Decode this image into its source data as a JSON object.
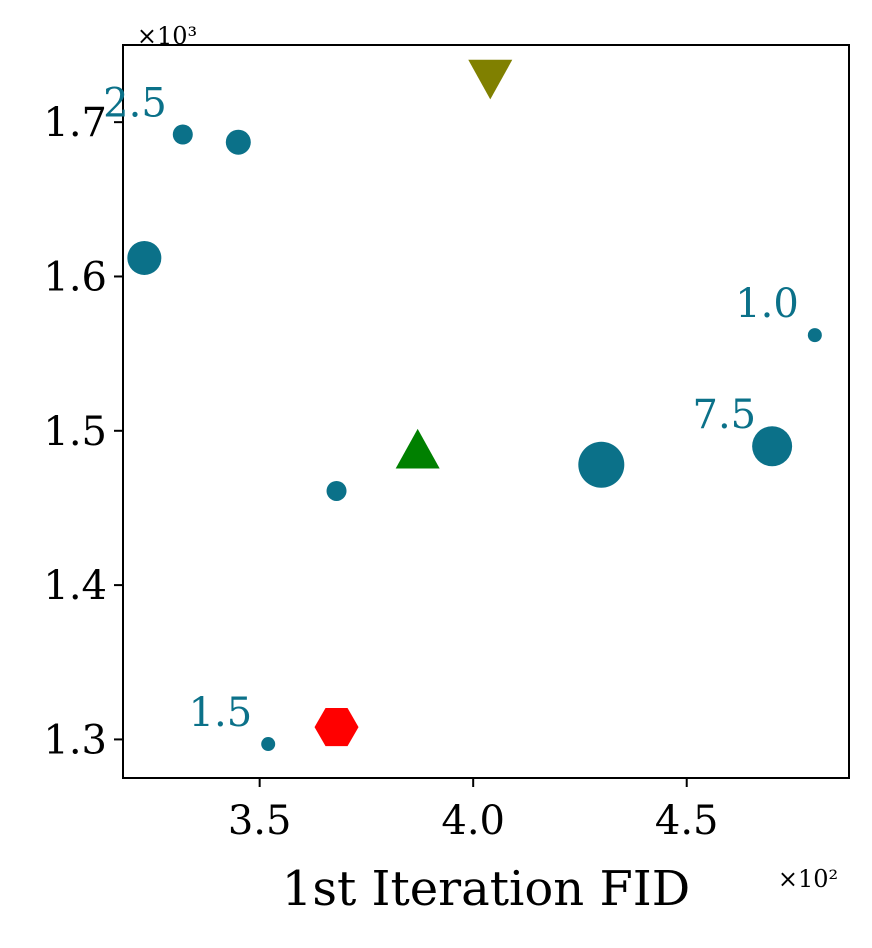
{
  "chart_data": {
    "type": "scatter",
    "xlabel": "1st Iteration FID",
    "ylabel": "",
    "x_multiplier": "×10²",
    "y_multiplier": "×10³",
    "x_scale": 100,
    "y_scale": 1000,
    "xlim": [
      3.18,
      4.88
    ],
    "ylim": [
      1.275,
      1.75
    ],
    "x_ticks": [
      3.5,
      4.0,
      4.5
    ],
    "x_tick_labels": [
      "3.5",
      "4.0",
      "4.5"
    ],
    "y_ticks": [
      1.3,
      1.4,
      1.5,
      1.6,
      1.7
    ],
    "y_tick_labels": [
      "1.3",
      "1.4",
      "1.5",
      "1.6",
      "1.7"
    ],
    "grid": false,
    "series": [
      {
        "marker": "circle",
        "color": "#0b7189",
        "points": [
          {
            "x": 3.32,
            "y": 1.692,
            "size": "small",
            "label": "2.5"
          },
          {
            "x": 3.45,
            "y": 1.687,
            "size": "small-medium"
          },
          {
            "x": 3.23,
            "y": 1.612,
            "size": "medium"
          },
          {
            "x": 4.8,
            "y": 1.562,
            "size": "tiny",
            "label": "1.0"
          },
          {
            "x": 4.7,
            "y": 1.49,
            "size": "large",
            "label": "7.5"
          },
          {
            "x": 4.3,
            "y": 1.478,
            "size": "x-large"
          },
          {
            "x": 3.68,
            "y": 1.461,
            "size": "small"
          },
          {
            "x": 3.52,
            "y": 1.297,
            "size": "tiny",
            "label": "1.5"
          }
        ]
      },
      {
        "marker": "triangle-up",
        "color": "#008000",
        "points": [
          {
            "x": 3.87,
            "y": 1.487
          }
        ]
      },
      {
        "marker": "triangle-down",
        "color": "#808000",
        "points": [
          {
            "x": 4.04,
            "y": 1.729
          }
        ]
      },
      {
        "marker": "hexagon",
        "color": "#ff0000",
        "points": [
          {
            "x": 3.68,
            "y": 1.308
          }
        ]
      }
    ]
  }
}
